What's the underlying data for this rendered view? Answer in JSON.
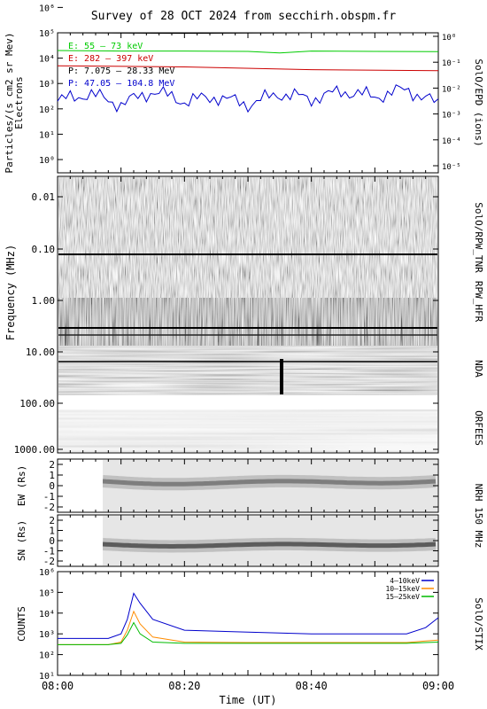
{
  "title": "Survey of 28 OCT 2024 from secchirh.obspm.fr",
  "colors": {
    "bg": "#ffffff",
    "frame": "#000000",
    "channel_white": "#000000",
    "channel_green": "#00cc00",
    "channel_red": "#cc0000",
    "channel_blue": "#0000cc",
    "stix_blue": "#0000cc",
    "stix_orange": "#ff8c00",
    "stix_green": "#00bb00"
  },
  "panels": {
    "epd": {
      "ylabel": "Particles/(s cm2 sr Mev)",
      "ylabel2": "Electrons",
      "right_label": "SolO/EPD (ions)",
      "left_ticks": [
        "10⁰",
        "10¹",
        "10²",
        "10³",
        "10⁴",
        "10⁵",
        "10⁶"
      ],
      "right_ticks": [
        "10⁻⁵",
        "10⁻⁴",
        "10⁻³",
        "10⁻²",
        "10⁻¹",
        "10⁰"
      ]
    },
    "radio": {
      "ylabel": "Frequency (MHz)",
      "ticks": [
        "0.01",
        "0.10",
        "1.00",
        "10.00",
        "100.00",
        "1000.00"
      ],
      "right_labels": [
        "SolO/RPW_TNR",
        "RPW_HFR",
        "NDA",
        "ORFEES"
      ]
    },
    "nrh_ew": {
      "ylabel": "EW (Rs)",
      "ticks": [
        "2",
        "1",
        "0",
        "-1",
        "-2"
      ],
      "right_label": "NRH 150 MHz"
    },
    "nrh_sn": {
      "ylabel": "SN (Rs)",
      "ticks": [
        "2",
        "1",
        "0",
        "-1",
        "-2"
      ]
    },
    "stix": {
      "ylabel": "COUNTS",
      "right_label": "SolO/STIX",
      "ticks": [
        "10¹",
        "10²",
        "10³",
        "10⁴",
        "10⁵",
        "10⁶"
      ]
    }
  },
  "xaxis": {
    "label": "Time (UT)",
    "ticks": [
      "08:00",
      "08:20",
      "08:40",
      "09:00"
    ]
  },
  "chart_data": [
    {
      "type": "line",
      "title": "",
      "ylabel": "Particles/(s cm2 sr Mev)",
      "log_scale": true,
      "ylim": [
        0.3,
        100000
      ],
      "xlim": [
        0,
        60
      ],
      "series": [
        {
          "name": "E: 55 – 73 keV",
          "color": "#00cc00",
          "x": [
            0,
            10,
            20,
            30,
            35,
            40,
            50,
            60
          ],
          "values": [
            20000,
            19000,
            19000,
            18500,
            16000,
            19000,
            18500,
            18000
          ]
        },
        {
          "name": "E: 282 – 397 keV",
          "color": "#cc0000",
          "x": [
            0,
            20,
            40,
            60
          ],
          "values": [
            5000,
            4500,
            3500,
            3200
          ]
        },
        {
          "name": "P: 7.075 – 28.33 MeV",
          "color": "#000000",
          "x": [
            0,
            20,
            40,
            60
          ],
          "values": [
            100000,
            95000,
            100000,
            100000
          ]
        },
        {
          "name": "P: 47.05 – 104.8 MeV",
          "color": "#0000cc",
          "x": [
            0,
            5,
            10,
            15,
            20,
            25,
            30,
            35,
            40,
            45,
            50,
            55,
            60
          ],
          "values": [
            200,
            400,
            150,
            500,
            200,
            300,
            150,
            400,
            250,
            500,
            300,
            600,
            150
          ]
        }
      ]
    },
    {
      "type": "line",
      "title": "",
      "ylabel": "COUNTS",
      "log_scale": true,
      "ylim": [
        10,
        1000000
      ],
      "xlim": [
        0,
        60
      ],
      "series": [
        {
          "name": "4–10keV",
          "color": "#0000cc",
          "x": [
            0,
            8,
            10,
            11,
            12,
            13,
            15,
            20,
            30,
            40,
            50,
            55,
            58,
            60
          ],
          "values": [
            600,
            600,
            1000,
            5000,
            90000,
            30000,
            5000,
            1500,
            1200,
            1000,
            1000,
            1000,
            2000,
            6000
          ]
        },
        {
          "name": "10–15keV",
          "color": "#ff8c00",
          "x": [
            0,
            8,
            10,
            11,
            12,
            13,
            15,
            20,
            30,
            40,
            50,
            55,
            58,
            60
          ],
          "values": [
            300,
            300,
            400,
            1500,
            12000,
            3000,
            700,
            400,
            380,
            380,
            380,
            380,
            450,
            500
          ]
        },
        {
          "name": "15–25keV",
          "color": "#00bb00",
          "x": [
            0,
            8,
            10,
            11,
            12,
            13,
            15,
            20,
            30,
            40,
            50,
            55,
            58,
            60
          ],
          "values": [
            300,
            300,
            350,
            900,
            3500,
            1000,
            400,
            350,
            350,
            350,
            350,
            350,
            380,
            400
          ]
        }
      ]
    }
  ]
}
